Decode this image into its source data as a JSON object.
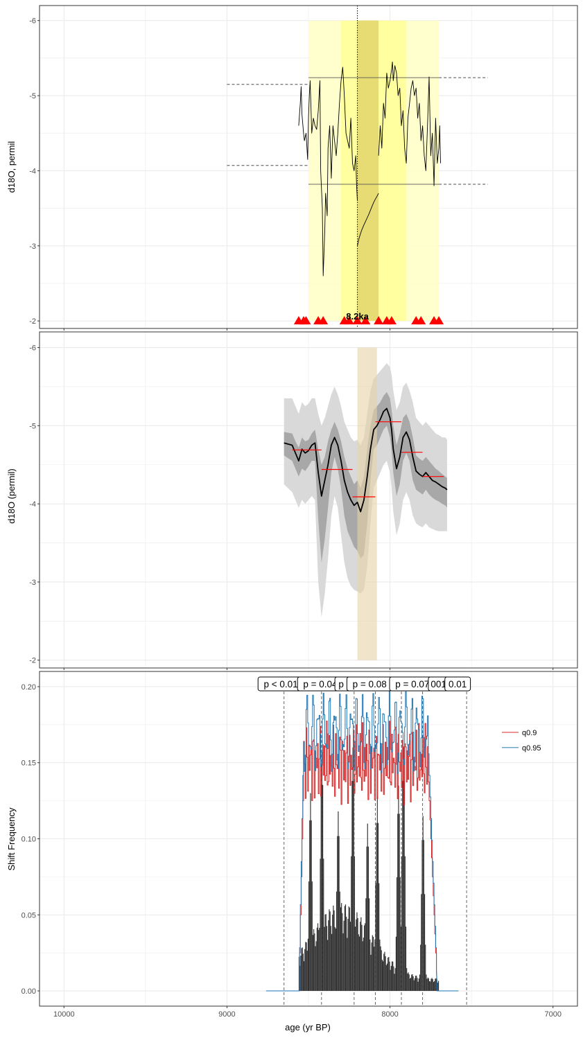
{
  "colors": {
    "grid": "#ebebeb",
    "panel_border": "#333333",
    "yellow_outer": "#ffffc4",
    "yellow_mid": "#ffff96",
    "yellow_inner": "#e3d66b",
    "ribbon_outer": "#d9d9d9",
    "ribbon_inner": "#a8a8a8",
    "tan_band": "#e6d3a8",
    "red": "#ff0000",
    "q90": "#d62728",
    "q95": "#1f77b4",
    "bars": "#333333"
  },
  "chart_data": [
    {
      "type": "line",
      "ylabel": "d18O, permil",
      "ylim": [
        -1.9,
        -6.2
      ],
      "xlim": [
        10150,
        6850
      ],
      "y_ticks": [
        "-2",
        "-3",
        "-4",
        "-5",
        "-6"
      ],
      "y_tick_values": [
        -2,
        -3,
        -4,
        -5,
        -6
      ],
      "x_ticks": [
        10000,
        9000,
        8000,
        7000
      ],
      "event_marker_age": 8200,
      "event_label": "8.2ka",
      "bands": [
        {
          "from": 8500,
          "to": 7700,
          "level": "outer"
        },
        {
          "from": 8300,
          "to": 7900,
          "level": "mid"
        },
        {
          "from": 8200,
          "to": 8070,
          "level": "inner"
        }
      ],
      "threshold_lines": [
        {
          "x_from": 9000,
          "x_to": 8500,
          "y": -5.15,
          "style": "dashed"
        },
        {
          "x_from": 8500,
          "x_to": 7700,
          "y": -5.24,
          "style": "solid"
        },
        {
          "x_from": 7700,
          "x_to": 7400,
          "y": -5.24,
          "style": "dashed"
        },
        {
          "x_from": 9000,
          "x_to": 8500,
          "y": -4.07,
          "style": "dashed"
        },
        {
          "x_from": 8500,
          "x_to": 7700,
          "y": -3.82,
          "style": "solid"
        },
        {
          "x_from": 7700,
          "x_to": 7400,
          "y": -3.82,
          "style": "dashed"
        }
      ],
      "triangle_ages": [
        8560,
        8530,
        8515,
        8440,
        8410,
        8280,
        8250,
        8200,
        8150,
        8070,
        8020,
        7990,
        7840,
        7810,
        7730,
        7700
      ],
      "triangle_y": -2.0,
      "series": [
        {
          "x": [
            8560,
            8550,
            8545,
            8540,
            8530,
            8525,
            8515,
            8505,
            8500,
            8495,
            8490,
            8480,
            8470,
            8460,
            8450,
            8440,
            8430,
            8425,
            8415,
            8410,
            8400,
            8395,
            8385,
            8380,
            8370,
            8360,
            8350,
            8340,
            8330,
            8320,
            8310,
            8300,
            8290,
            8280,
            8270,
            8260,
            8250,
            8240,
            8230,
            8220,
            8210,
            8205,
            8200
          ],
          "y": [
            -4.6,
            -4.9,
            -5.12,
            -4.75,
            -4.5,
            -4.4,
            -4.5,
            -4.15,
            -4.7,
            -5.0,
            -5.2,
            -4.5,
            -4.7,
            -4.6,
            -4.55,
            -4.8,
            -5.2,
            -4.0,
            -3.5,
            -2.6,
            -3.2,
            -3.7,
            -3.4,
            -4.3,
            -4.6,
            -3.9,
            -4.6,
            -4.4,
            -4.2,
            -4.5,
            -4.9,
            -5.2,
            -5.38,
            -5.0,
            -4.5,
            -4.4,
            -4.3,
            -4.7,
            -4.1,
            -4.0,
            -4.2,
            -3.8,
            -3.6
          ]
        },
        {
          "x": [
            8200,
            8190,
            8175,
            8160,
            8145,
            8130,
            8115,
            8100,
            8090,
            8080,
            8070
          ],
          "y": [
            -3.0,
            -3.1,
            -3.2,
            -3.28,
            -3.35,
            -3.42,
            -3.5,
            -3.58,
            -3.62,
            -3.66,
            -3.7
          ]
        },
        {
          "x": [
            8070,
            8060,
            8050,
            8040,
            8030,
            8020,
            8010,
            8000,
            7990,
            7985,
            7980,
            7970,
            7960,
            7950,
            7940,
            7930,
            7920,
            7910,
            7900,
            7890,
            7880,
            7870,
            7860,
            7850,
            7840,
            7830,
            7820,
            7810,
            7800,
            7790,
            7780,
            7770,
            7760,
            7750,
            7740,
            7730,
            7720,
            7710,
            7700,
            7695,
            7690
          ],
          "y": [
            -4.2,
            -4.6,
            -4.3,
            -4.9,
            -4.7,
            -5.3,
            -5.1,
            -5.2,
            -5.35,
            -5.45,
            -5.2,
            -5.4,
            -5.3,
            -5.0,
            -5.1,
            -4.6,
            -4.8,
            -4.3,
            -4.1,
            -4.7,
            -4.9,
            -5.1,
            -5.2,
            -5.0,
            -5.1,
            -4.7,
            -4.9,
            -4.4,
            -4.6,
            -4.2,
            -4.0,
            -4.6,
            -5.25,
            -4.2,
            -4.5,
            -3.8,
            -4.7,
            -4.1,
            -4.3,
            -4.6,
            -4.1
          ]
        }
      ]
    },
    {
      "type": "area",
      "ylabel": "d18O (permil)",
      "ylim": [
        -1.9,
        -6.2
      ],
      "y_ticks": [
        "-2",
        "-3",
        "-4",
        "-5",
        "-6"
      ],
      "y_tick_values": [
        -2,
        -3,
        -4,
        -5,
        -6
      ],
      "highlight_band": {
        "from": 8200,
        "to": 8080
      },
      "median": {
        "x": [
          8650,
          8600,
          8580,
          8560,
          8540,
          8520,
          8500,
          8480,
          8460,
          8440,
          8420,
          8400,
          8380,
          8360,
          8340,
          8320,
          8300,
          8280,
          8260,
          8240,
          8220,
          8200,
          8180,
          8160,
          8140,
          8120,
          8100,
          8080,
          8060,
          8040,
          8020,
          8000,
          7990,
          7980,
          7960,
          7940,
          7920,
          7900,
          7880,
          7860,
          7840,
          7820,
          7800,
          7780,
          7760,
          7740,
          7720,
          7700,
          7680,
          7660,
          7650
        ],
        "y": [
          -4.78,
          -4.75,
          -4.65,
          -4.55,
          -4.7,
          -4.65,
          -4.68,
          -4.75,
          -4.78,
          -4.4,
          -4.1,
          -4.3,
          -4.5,
          -4.75,
          -4.85,
          -4.75,
          -4.55,
          -4.3,
          -4.15,
          -4.05,
          -3.98,
          -4.02,
          -3.9,
          -4.05,
          -4.35,
          -4.7,
          -4.95,
          -5.0,
          -5.08,
          -5.18,
          -5.22,
          -5.1,
          -4.95,
          -4.7,
          -4.45,
          -4.6,
          -4.85,
          -4.92,
          -4.82,
          -4.6,
          -4.42,
          -4.38,
          -4.35,
          -4.4,
          -4.35,
          -4.3,
          -4.28,
          -4.25,
          -4.22,
          -4.2,
          -4.18
        ]
      },
      "inner_upper": [
        -4.92,
        -4.9,
        -4.8,
        -4.72,
        -4.85,
        -4.8,
        -4.82,
        -4.9,
        -4.95,
        -4.7,
        -4.5,
        -4.6,
        -4.8,
        -4.95,
        -5.05,
        -4.95,
        -4.8,
        -4.6,
        -4.45,
        -4.35,
        -4.25,
        -4.3,
        -4.2,
        -4.35,
        -4.7,
        -5.0,
        -5.2,
        -5.25,
        -5.3,
        -5.38,
        -5.43,
        -5.35,
        -5.2,
        -5.0,
        -4.75,
        -4.9,
        -5.1,
        -5.15,
        -5.05,
        -4.85,
        -4.62,
        -4.58,
        -4.55,
        -4.6,
        -4.55,
        -4.5,
        -4.45,
        -4.42,
        -4.38,
        -4.35,
        -4.33
      ],
      "inner_lower": [
        -4.62,
        -4.55,
        -4.45,
        -4.35,
        -4.45,
        -4.42,
        -4.48,
        -4.55,
        -4.55,
        -3.8,
        -3.25,
        -3.55,
        -3.95,
        -4.4,
        -4.6,
        -4.45,
        -4.2,
        -3.85,
        -3.65,
        -3.55,
        -3.45,
        -3.4,
        -3.3,
        -3.35,
        -3.75,
        -4.3,
        -4.7,
        -4.75,
        -4.85,
        -4.95,
        -5.0,
        -4.85,
        -4.68,
        -4.4,
        -4.1,
        -4.25,
        -4.55,
        -4.65,
        -4.55,
        -4.3,
        -4.18,
        -4.15,
        -4.12,
        -4.18,
        -4.12,
        -4.08,
        -4.05,
        -4.03,
        -4.0,
        -3.98,
        -3.95
      ],
      "outer_upper": [
        -5.35,
        -5.35,
        -5.25,
        -5.15,
        -5.3,
        -5.25,
        -5.28,
        -5.35,
        -5.35,
        -5.15,
        -5.0,
        -5.1,
        -5.25,
        -5.4,
        -5.5,
        -5.4,
        -5.25,
        -5.05,
        -4.95,
        -4.85,
        -4.8,
        -4.82,
        -4.75,
        -4.85,
        -5.15,
        -5.45,
        -5.6,
        -5.65,
        -5.7,
        -5.75,
        -5.8,
        -5.75,
        -5.65,
        -5.45,
        -5.2,
        -5.3,
        -5.5,
        -5.55,
        -5.45,
        -5.3,
        -5.1,
        -5.05,
        -5.0,
        -5.05,
        -5.0,
        -4.95,
        -4.9,
        -4.88,
        -4.85,
        -4.85,
        -4.82
      ],
      "outer_lower": [
        -4.25,
        -4.15,
        -4.05,
        -3.95,
        -4.05,
        -4.0,
        -4.05,
        -4.1,
        -4.05,
        -3.0,
        -2.55,
        -2.85,
        -3.3,
        -3.85,
        -4.1,
        -3.95,
        -3.6,
        -3.25,
        -3.05,
        -2.95,
        -2.9,
        -2.88,
        -2.85,
        -2.9,
        -3.2,
        -3.75,
        -4.2,
        -4.3,
        -4.4,
        -4.5,
        -4.55,
        -4.4,
        -4.2,
        -3.9,
        -3.6,
        -3.75,
        -4.05,
        -4.15,
        -4.05,
        -3.85,
        -3.75,
        -3.72,
        -3.7,
        -3.75,
        -3.7,
        -3.68,
        -3.66,
        -3.65,
        -3.65,
        -3.65,
        -3.65
      ],
      "mean_segments": [
        {
          "from": 8600,
          "to": 8420,
          "y": -4.69
        },
        {
          "from": 8420,
          "to": 8230,
          "y": -4.44
        },
        {
          "from": 8230,
          "to": 8090,
          "y": -4.09
        },
        {
          "from": 8090,
          "to": 7930,
          "y": -5.05
        },
        {
          "from": 7930,
          "to": 7800,
          "y": -4.66
        },
        {
          "from": 7800,
          "to": 7670,
          "y": -4.35
        }
      ]
    },
    {
      "type": "bar",
      "ylabel": "Shift Frequency",
      "xlabel": "age (yr BP)",
      "ylim": [
        -0.01,
        0.21
      ],
      "y_ticks": [
        "0.00",
        "0.05",
        "0.10",
        "0.15",
        "0.20"
      ],
      "y_tick_values": [
        0,
        0.05,
        0.1,
        0.15,
        0.2
      ],
      "x_ticks": [
        "10000",
        "9000",
        "8000",
        "7000"
      ],
      "x_tick_values": [
        10000,
        9000,
        8000,
        7000
      ],
      "dashed_lines": [
        8650,
        8420,
        8220,
        8090,
        7930,
        7800,
        7530
      ],
      "pvalue_labels": [
        {
          "x": 8670,
          "text": "p < 0.01"
        },
        {
          "x": 8428,
          "text": "p = 0.04"
        },
        {
          "x": 8275,
          "text": "p ="
        },
        {
          "x": 8125,
          "text": "p = 0.08"
        },
        {
          "x": 7968,
          "text": "p"
        },
        {
          "x": 7863,
          "text": "p = 0.07"
        },
        {
          "x": 7702,
          "text": "001"
        },
        {
          "x": 7585,
          "text": "0.01"
        }
      ],
      "legend": [
        {
          "label": "q0.9",
          "color": "#d62728"
        },
        {
          "label": "q0.95",
          "color": "#1f77b4"
        }
      ],
      "bar_peaks": [
        {
          "x": 8490,
          "h": 0.13
        },
        {
          "x": 8420,
          "h": 0.157
        },
        {
          "x": 8320,
          "h": 0.118
        },
        {
          "x": 8230,
          "h": 0.16
        },
        {
          "x": 8140,
          "h": 0.11
        },
        {
          "x": 8080,
          "h": 0.128
        },
        {
          "x": 7950,
          "h": 0.135
        },
        {
          "x": 7920,
          "h": 0.16
        },
        {
          "x": 7800,
          "h": 0.115
        }
      ],
      "bar_range": [
        8560,
        7700
      ],
      "q90_level": 0.15,
      "q95_level": 0.17,
      "quantile_range": [
        8530,
        7770
      ]
    }
  ]
}
